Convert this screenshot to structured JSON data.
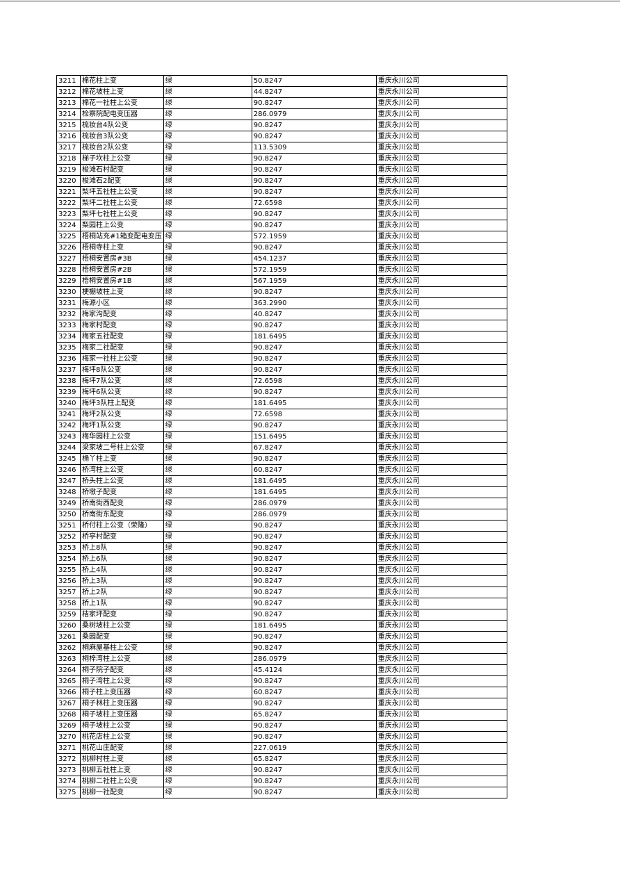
{
  "table": {
    "rows": [
      [
        "3211",
        "棉花柱上变",
        "绿",
        "50.8247",
        "重庆永川公司"
      ],
      [
        "3212",
        "棉花坡柱上变",
        "绿",
        "44.8247",
        "重庆永川公司"
      ],
      [
        "3213",
        "棉花一社柱上公变",
        "绿",
        "90.8247",
        "重庆永川公司"
      ],
      [
        "3214",
        "检察院配电变压器",
        "绿",
        "286.0979",
        "重庆永川公司"
      ],
      [
        "3215",
        "梳妆台4队公变",
        "绿",
        "90.8247",
        "重庆永川公司"
      ],
      [
        "3216",
        "梳妆台3队公变",
        "绿",
        "90.8247",
        "重庆永川公司"
      ],
      [
        "3217",
        "梳妆台2队公变",
        "绿",
        "113.5309",
        "重庆永川公司"
      ],
      [
        "3218",
        "梯子坎柱上公变",
        "绿",
        "90.8247",
        "重庆永川公司"
      ],
      [
        "3219",
        "梭滩石村配变",
        "绿",
        "90.8247",
        "重庆永川公司"
      ],
      [
        "3220",
        "梭滩石2配变",
        "绿",
        "90.8247",
        "重庆永川公司"
      ],
      [
        "3221",
        "梨坪五社柱上公变",
        "绿",
        "90.8247",
        "重庆永川公司"
      ],
      [
        "3222",
        "梨坪二社柱上公变",
        "绿",
        "72.6598",
        "重庆永川公司"
      ],
      [
        "3223",
        "梨坪七社柱上公变",
        "绿",
        "90.8247",
        "重庆永川公司"
      ],
      [
        "3224",
        "梨园柱上公变",
        "绿",
        "90.8247",
        "重庆永川公司"
      ],
      [
        "3225",
        "梧桐站充#1箱变配电变压",
        "绿",
        "572.1959",
        "重庆永川公司"
      ],
      [
        "3226",
        "梧桐寺柱上变",
        "绿",
        "90.8247",
        "重庆永川公司"
      ],
      [
        "3227",
        "梧桐安置房#3B",
        "绿",
        "454.1237",
        "重庆永川公司"
      ],
      [
        "3228",
        "梧桐安置房#2B",
        "绿",
        "572.1959",
        "重庆永川公司"
      ],
      [
        "3229",
        "梧桐安置房#1B",
        "绿",
        "567.1959",
        "重庆永川公司"
      ],
      [
        "3230",
        "梗棚坡柱上变",
        "绿",
        "90.8247",
        "重庆永川公司"
      ],
      [
        "3231",
        "梅源小区",
        "绿",
        "363.2990",
        "重庆永川公司"
      ],
      [
        "3232",
        "梅家沟配变",
        "绿",
        "40.8247",
        "重庆永川公司"
      ],
      [
        "3233",
        "梅家村配变",
        "绿",
        "90.8247",
        "重庆永川公司"
      ],
      [
        "3234",
        "梅家五社配变",
        "绿",
        "181.6495",
        "重庆永川公司"
      ],
      [
        "3235",
        "梅家二社配变",
        "绿",
        "90.8247",
        "重庆永川公司"
      ],
      [
        "3236",
        "梅家一社柱上公变",
        "绿",
        "90.8247",
        "重庆永川公司"
      ],
      [
        "3237",
        "梅坪8队公变",
        "绿",
        "90.8247",
        "重庆永川公司"
      ],
      [
        "3238",
        "梅坪7队公变",
        "绿",
        "72.6598",
        "重庆永川公司"
      ],
      [
        "3239",
        "梅坪6队公变",
        "绿",
        "90.8247",
        "重庆永川公司"
      ],
      [
        "3240",
        "梅坪3队柱上配变",
        "绿",
        "181.6495",
        "重庆永川公司"
      ],
      [
        "3241",
        "梅坪2队公变",
        "绿",
        "72.6598",
        "重庆永川公司"
      ],
      [
        "3242",
        "梅坪1队公变",
        "绿",
        "90.8247",
        "重庆永川公司"
      ],
      [
        "3243",
        "梅华园柱上公变",
        "绿",
        "151.6495",
        "重庆永川公司"
      ],
      [
        "3244",
        "梁家坡二号柱上公变",
        "绿",
        "67.8247",
        "重庆永川公司"
      ],
      [
        "3245",
        "桷丫柱上变",
        "绿",
        "90.8247",
        "重庆永川公司"
      ],
      [
        "3246",
        "桥湾柱上公变",
        "绿",
        "60.8247",
        "重庆永川公司"
      ],
      [
        "3247",
        "桥头柱上公变",
        "绿",
        "181.6495",
        "重庆永川公司"
      ],
      [
        "3248",
        "桥墩子配变",
        "绿",
        "181.6495",
        "重庆永川公司"
      ],
      [
        "3249",
        "桥南街西配变",
        "绿",
        "286.0979",
        "重庆永川公司"
      ],
      [
        "3250",
        "桥南街东配变",
        "绿",
        "286.0979",
        "重庆永川公司"
      ],
      [
        "3251",
        "桥付柱上公变（荣隆）",
        "绿",
        "90.8247",
        "重庆永川公司"
      ],
      [
        "3252",
        "桥亭村配变",
        "绿",
        "90.8247",
        "重庆永川公司"
      ],
      [
        "3253",
        "桥上8队",
        "绿",
        "90.8247",
        "重庆永川公司"
      ],
      [
        "3254",
        "桥上6队",
        "绿",
        "90.8247",
        "重庆永川公司"
      ],
      [
        "3255",
        "桥上4队",
        "绿",
        "90.8247",
        "重庆永川公司"
      ],
      [
        "3256",
        "桥上3队",
        "绿",
        "90.8247",
        "重庆永川公司"
      ],
      [
        "3257",
        "桥上2队",
        "绿",
        "90.8247",
        "重庆永川公司"
      ],
      [
        "3258",
        "桥上1队",
        "绿",
        "90.8247",
        "重庆永川公司"
      ],
      [
        "3259",
        "桔家坪配变",
        "绿",
        "90.8247",
        "重庆永川公司"
      ],
      [
        "3260",
        "桑树坡柱上公变",
        "绿",
        "181.6495",
        "重庆永川公司"
      ],
      [
        "3261",
        "桑园配变",
        "绿",
        "90.8247",
        "重庆永川公司"
      ],
      [
        "3262",
        "桐麻屋基柱上公变",
        "绿",
        "90.8247",
        "重庆永川公司"
      ],
      [
        "3263",
        "桐梓湾柱上公变",
        "绿",
        "286.0979",
        "重庆永川公司"
      ],
      [
        "3264",
        "桐子院子配变",
        "绿",
        "45.4124",
        "重庆永川公司"
      ],
      [
        "3265",
        "桐子湾柱上公变",
        "绿",
        "90.8247",
        "重庆永川公司"
      ],
      [
        "3266",
        "桐子柱上变压器",
        "绿",
        "60.8247",
        "重庆永川公司"
      ],
      [
        "3267",
        "桐子林柱上变压器",
        "绿",
        "90.8247",
        "重庆永川公司"
      ],
      [
        "3268",
        "桐子坡柱上变压器",
        "绿",
        "65.8247",
        "重庆永川公司"
      ],
      [
        "3269",
        "桐子坡柱上公变",
        "绿",
        "90.8247",
        "重庆永川公司"
      ],
      [
        "3270",
        "桃花店柱上公变",
        "绿",
        "90.8247",
        "重庆永川公司"
      ],
      [
        "3271",
        "桃花山庄配变",
        "绿",
        "227.0619",
        "重庆永川公司"
      ],
      [
        "3272",
        "桃柳村柱上变",
        "绿",
        "65.8247",
        "重庆永川公司"
      ],
      [
        "3273",
        "桃柳五社柱上变",
        "绿",
        "90.8247",
        "重庆永川公司"
      ],
      [
        "3274",
        "桃柳二社柱上公变",
        "绿",
        "90.8247",
        "重庆永川公司"
      ],
      [
        "3275",
        "桃柳一社配变",
        "绿",
        "90.8247",
        "重庆永川公司"
      ]
    ]
  }
}
